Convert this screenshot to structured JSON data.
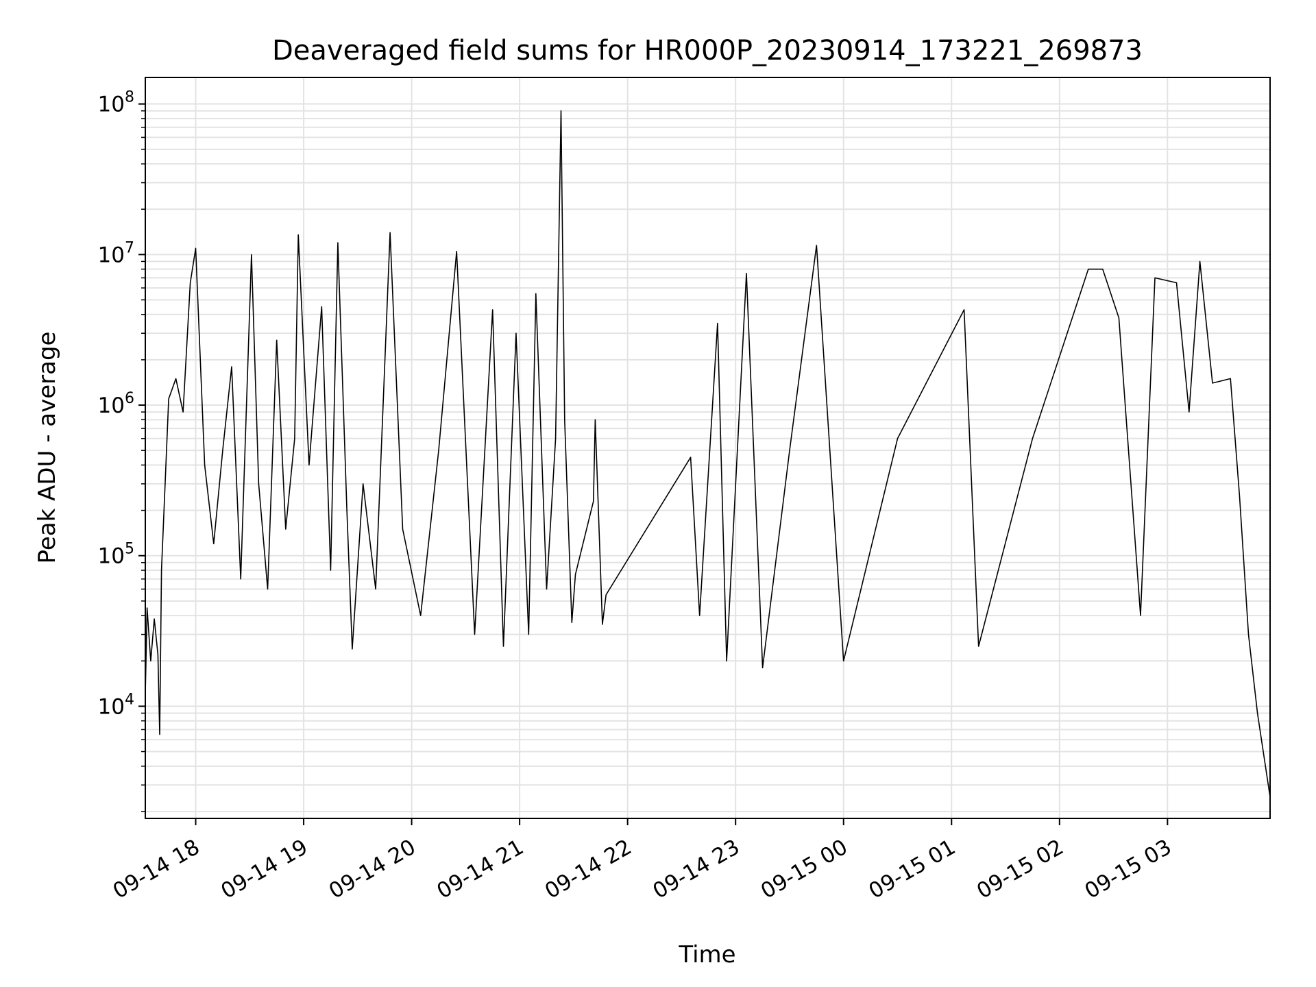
{
  "chart_data": {
    "type": "line",
    "title": "Deaveraged field sums for HR000P_20230914_173221_269873",
    "xlabel": "Time",
    "ylabel": "Peak ADU - average",
    "yscale": "log",
    "ylim": [
      1800,
      150000000
    ],
    "xlim": [
      "2023-09-14 17:32",
      "2023-09-15 03:57"
    ],
    "grid": true,
    "x_tick_labels": [
      "09-14 18",
      "09-14 19",
      "09-14 20",
      "09-14 21",
      "09-14 22",
      "09-14 23",
      "09-15 00",
      "09-15 01",
      "09-15 02",
      "09-15 03"
    ],
    "y_tick_labels": [
      {
        "base": "10",
        "exp": "4",
        "value": 10000
      },
      {
        "base": "10",
        "exp": "5",
        "value": 100000
      },
      {
        "base": "10",
        "exp": "6",
        "value": 1000000
      },
      {
        "base": "10",
        "exp": "7",
        "value": 10000000
      },
      {
        "base": "10",
        "exp": "8",
        "value": 100000000
      }
    ],
    "series": [
      {
        "color": "#000000",
        "points": [
          [
            "2023-09-14 17:32",
            12000
          ],
          [
            "2023-09-14 17:33",
            45000
          ],
          [
            "2023-09-14 17:35",
            20000
          ],
          [
            "2023-09-14 17:37",
            38000
          ],
          [
            "2023-09-14 17:39",
            22000
          ],
          [
            "2023-09-14 17:40",
            6500
          ],
          [
            "2023-09-14 17:41",
            80000
          ],
          [
            "2023-09-14 17:43",
            300000
          ],
          [
            "2023-09-14 17:45",
            1100000
          ],
          [
            "2023-09-14 17:49",
            1500000
          ],
          [
            "2023-09-14 17:53",
            900000
          ],
          [
            "2023-09-14 17:57",
            6500000
          ],
          [
            "2023-09-14 18:00",
            11000000
          ],
          [
            "2023-09-14 18:05",
            400000
          ],
          [
            "2023-09-14 18:10",
            120000
          ],
          [
            "2023-09-14 18:15",
            500000
          ],
          [
            "2023-09-14 18:20",
            1800000
          ],
          [
            "2023-09-14 18:25",
            70000
          ],
          [
            "2023-09-14 18:31",
            10000000
          ],
          [
            "2023-09-14 18:35",
            300000
          ],
          [
            "2023-09-14 18:40",
            60000
          ],
          [
            "2023-09-14 18:45",
            2700000
          ],
          [
            "2023-09-14 18:50",
            150000
          ],
          [
            "2023-09-14 18:55",
            600000
          ],
          [
            "2023-09-14 18:57",
            13500000
          ],
          [
            "2023-09-14 19:03",
            400000
          ],
          [
            "2023-09-14 19:10",
            4500000
          ],
          [
            "2023-09-14 19:15",
            80000
          ],
          [
            "2023-09-14 19:19",
            12000000
          ],
          [
            "2023-09-14 19:24",
            200000
          ],
          [
            "2023-09-14 19:27",
            24000
          ],
          [
            "2023-09-14 19:33",
            300000
          ],
          [
            "2023-09-14 19:40",
            60000
          ],
          [
            "2023-09-14 19:48",
            14000000
          ],
          [
            "2023-09-14 19:55",
            150000
          ],
          [
            "2023-09-14 20:05",
            40000
          ],
          [
            "2023-09-14 20:15",
            500000
          ],
          [
            "2023-09-14 20:25",
            10500000
          ],
          [
            "2023-09-14 20:35",
            30000
          ],
          [
            "2023-09-14 20:45",
            4300000
          ],
          [
            "2023-09-14 20:51",
            25000
          ],
          [
            "2023-09-14 20:58",
            3000000
          ],
          [
            "2023-09-14 21:05",
            30000
          ],
          [
            "2023-09-14 21:09",
            5500000
          ],
          [
            "2023-09-14 21:15",
            60000
          ],
          [
            "2023-09-14 21:20",
            600000
          ],
          [
            "2023-09-14 21:23",
            90000000
          ],
          [
            "2023-09-14 21:25",
            800000
          ],
          [
            "2023-09-14 21:29",
            36000
          ],
          [
            "2023-09-14 21:31",
            75000
          ],
          [
            "2023-09-14 21:41",
            230000
          ],
          [
            "2023-09-14 21:42",
            800000
          ],
          [
            "2023-09-14 21:46",
            35000
          ],
          [
            "2023-09-14 21:48",
            55000
          ],
          [
            "2023-09-14 22:35",
            450000
          ],
          [
            "2023-09-14 22:40",
            40000
          ],
          [
            "2023-09-14 22:50",
            3500000
          ],
          [
            "2023-09-14 22:55",
            20000
          ],
          [
            "2023-09-14 23:06",
            7500000
          ],
          [
            "2023-09-14 23:15",
            18000
          ],
          [
            "2023-09-14 23:30",
            500000
          ],
          [
            "2023-09-14 23:45",
            11500000
          ],
          [
            "2023-09-15 00:00",
            20000
          ],
          [
            "2023-09-15 00:30",
            600000
          ],
          [
            "2023-09-15 01:07",
            4300000
          ],
          [
            "2023-09-15 01:15",
            25000
          ],
          [
            "2023-09-15 01:45",
            600000
          ],
          [
            "2023-09-15 02:16",
            8000000
          ],
          [
            "2023-09-15 02:24",
            8000000
          ],
          [
            "2023-09-15 02:33",
            3800000
          ],
          [
            "2023-09-15 02:45",
            40000
          ],
          [
            "2023-09-15 02:53",
            7000000
          ],
          [
            "2023-09-15 03:05",
            6500000
          ],
          [
            "2023-09-15 03:12",
            900000
          ],
          [
            "2023-09-15 03:18",
            9000000
          ],
          [
            "2023-09-15 03:25",
            1400000
          ],
          [
            "2023-09-15 03:35",
            1500000
          ],
          [
            "2023-09-15 03:40",
            250000
          ],
          [
            "2023-09-15 03:45",
            30000
          ],
          [
            "2023-09-15 03:50",
            9000
          ],
          [
            "2023-09-15 03:57",
            2500
          ]
        ]
      }
    ]
  }
}
